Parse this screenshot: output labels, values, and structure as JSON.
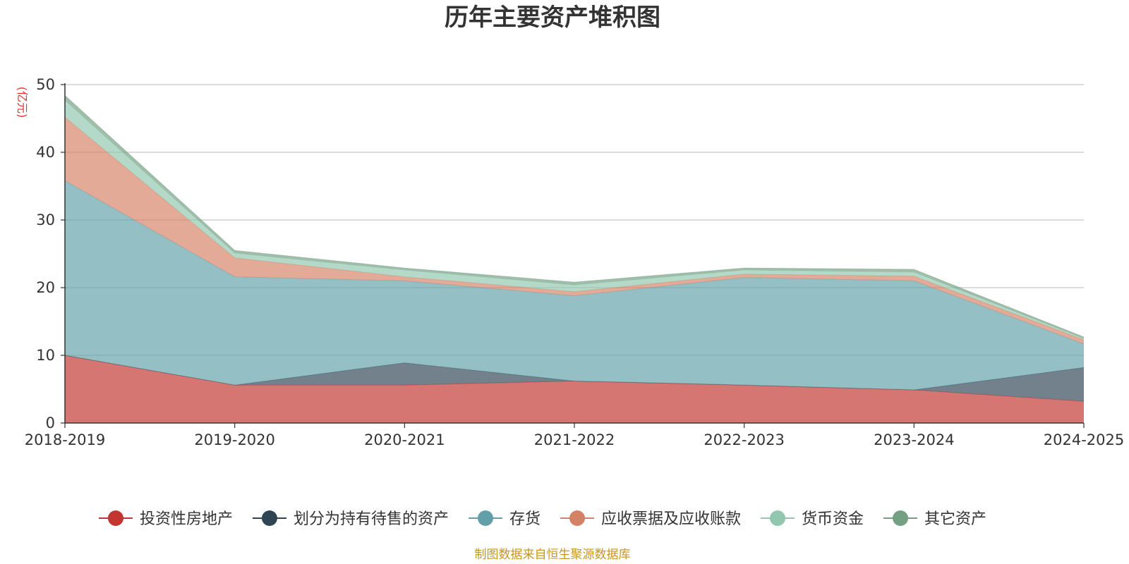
{
  "chart_data": {
    "type": "area",
    "stacked": true,
    "title": "历年主要资产堆积图",
    "unit_label": "(亿元)",
    "categories": [
      "2018-2019",
      "2019-2020",
      "2020-2021",
      "2021-2022",
      "2022-2023",
      "2023-2024",
      "2024-2025"
    ],
    "ylim": [
      0,
      50
    ],
    "yticks": [
      0,
      10,
      20,
      30,
      40,
      50
    ],
    "grid": true,
    "legend_position": "bottom",
    "series": [
      {
        "name": "投资性房地产",
        "color": "#c23531",
        "values": [
          10.0,
          5.6,
          5.6,
          6.2,
          5.6,
          4.9,
          3.2
        ]
      },
      {
        "name": "划分为持有待售的资产",
        "color": "#2f4554",
        "values": [
          0.0,
          0.0,
          3.3,
          0.0,
          0.0,
          0.0,
          5.0
        ]
      },
      {
        "name": "存货",
        "color": "#61a0a8",
        "values": [
          25.8,
          16.0,
          12.1,
          12.6,
          15.9,
          16.1,
          3.5
        ]
      },
      {
        "name": "应收票据及应收账款",
        "color": "#d48265",
        "values": [
          9.4,
          2.8,
          0.6,
          0.6,
          0.5,
          0.7,
          0.6
        ]
      },
      {
        "name": "货币资金",
        "color": "#91c7ae",
        "values": [
          2.5,
          0.7,
          1.0,
          1.0,
          0.6,
          0.6,
          0.2
        ]
      },
      {
        "name": "其它资产",
        "color": "#749f83",
        "values": [
          0.7,
          0.4,
          0.3,
          0.4,
          0.3,
          0.4,
          0.2
        ]
      }
    ],
    "source_note": "制图数据来自恒生聚源数据库"
  }
}
